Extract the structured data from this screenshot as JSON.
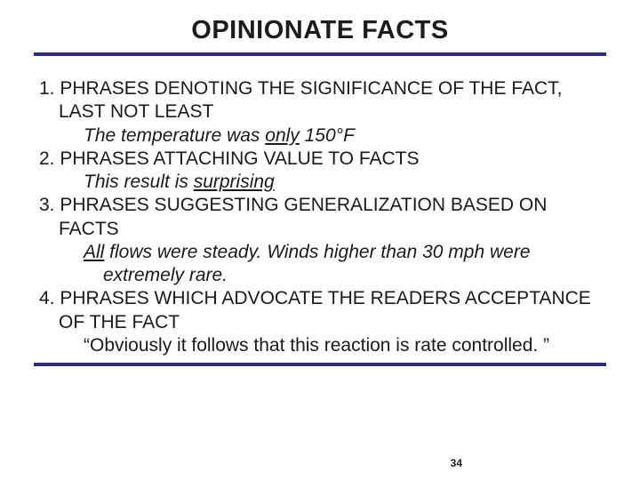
{
  "title": "OPINIONATE FACTS",
  "items": [
    {
      "num": "1.",
      "head": "PHRASES DENOTING THE SIGNIFICANCE OF THE FACT, LAST NOT LEAST",
      "ex_pre": "The temperature was ",
      "ex_u": "only",
      "ex_post": " 150°F"
    },
    {
      "num": "2.",
      "head": "PHRASES ATTACHING VALUE TO FACTS",
      "ex_pre": "This result is ",
      "ex_u": "surprising",
      "ex_post": ""
    },
    {
      "num": "3.",
      "head": "PHRASES SUGGESTING GENERALIZATION BASED ON FACTS",
      "ex_u": "All",
      "ex_post": " flows were steady. Winds higher than 30 mph were extremely rare."
    },
    {
      "num": "4.",
      "head": "PHRASES WHICH ADVOCATE THE READERS ACCEPTANCE OF THE FACT",
      "ex_post": "“Obviously it follows that this reaction is rate controlled. ”"
    }
  ],
  "page": "34",
  "colors": {
    "rule": "#2c2c7a",
    "text": "#1a1a1a",
    "bg": "#ffffff"
  }
}
